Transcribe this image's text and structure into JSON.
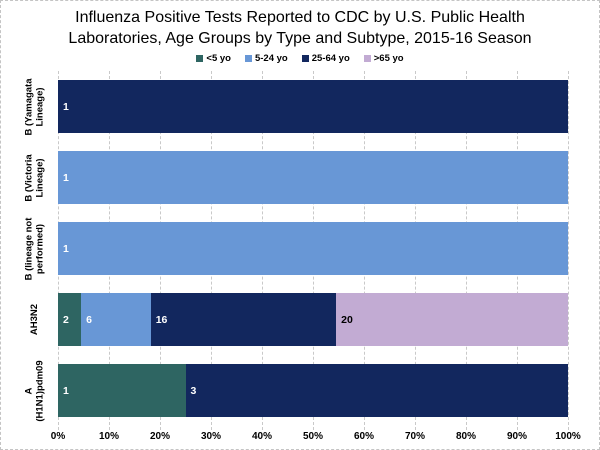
{
  "title": {
    "line1": "Influenza Positive Tests Reported to CDC by U.S. Public Health",
    "line2": "Laboratories, Age Groups by Type and Subtype, 2015-16 Season"
  },
  "colors": {
    "under5": "#2e6562",
    "age5_24": "#6897d6",
    "age25_64": "#12275e",
    "over65": "#c2abd3",
    "grid": "#c9c9c9",
    "label_light": "#ffffff",
    "label_dark": "#000000"
  },
  "legend": [
    {
      "label": "<5 yo",
      "color_key": "under5"
    },
    {
      "label": "5-24 yo",
      "color_key": "age5_24"
    },
    {
      "label": "25-64 yo",
      "color_key": "age25_64"
    },
    {
      "label": ">65 yo",
      "color_key": "over65"
    }
  ],
  "x_axis": {
    "tick_labels": [
      "0%",
      "10%",
      "20%",
      "30%",
      "40%",
      "50%",
      "60%",
      "70%",
      "80%",
      "90%",
      "100%"
    ]
  },
  "rows": [
    {
      "category_lines": [
        "B (Yamagata",
        "Lineage)"
      ],
      "segments": [
        {
          "color_key": "age25_64",
          "value": "1",
          "pct": 100,
          "text": "light"
        }
      ]
    },
    {
      "category_lines": [
        "B (Victoria",
        "Lineage)"
      ],
      "segments": [
        {
          "color_key": "age5_24",
          "value": "1",
          "pct": 100,
          "text": "light"
        }
      ]
    },
    {
      "category_lines": [
        "B (lineage not",
        "performed)"
      ],
      "segments": [
        {
          "color_key": "age5_24",
          "value": "1",
          "pct": 100,
          "text": "light"
        }
      ]
    },
    {
      "category_lines": [
        "AH3N2"
      ],
      "segments": [
        {
          "color_key": "under5",
          "value": "2",
          "pct": 4.545,
          "text": "light"
        },
        {
          "color_key": "age5_24",
          "value": "6",
          "pct": 13.636,
          "text": "light"
        },
        {
          "color_key": "age25_64",
          "value": "16",
          "pct": 36.364,
          "text": "light"
        },
        {
          "color_key": "over65",
          "value": "20",
          "pct": 45.455,
          "text": "dark"
        }
      ]
    },
    {
      "category_lines": [
        "A",
        "(H1N1)pdm09"
      ],
      "segments": [
        {
          "color_key": "under5",
          "value": "1",
          "pct": 25,
          "text": "light"
        },
        {
          "color_key": "age25_64",
          "value": "3",
          "pct": 75,
          "text": "light"
        }
      ]
    }
  ],
  "chart_data": {
    "type": "bar",
    "orientation": "horizontal",
    "stacked": true,
    "normalized_to_100pct": true,
    "title": "Influenza Positive Tests Reported to CDC by U.S. Public Health Laboratories, Age Groups by Type and Subtype, 2015-16 Season",
    "categories": [
      "B (Yamagata Lineage)",
      "B (Victoria Lineage)",
      "B (lineage not performed)",
      "AH3N2",
      "A (H1N1)pdm09"
    ],
    "series": [
      {
        "name": "<5 yo",
        "values": [
          0,
          0,
          0,
          2,
          1
        ],
        "color": "#2e6562"
      },
      {
        "name": "5-24 yo",
        "values": [
          0,
          1,
          1,
          6,
          0
        ],
        "color": "#6897d6"
      },
      {
        "name": "25-64 yo",
        "values": [
          1,
          0,
          0,
          16,
          3
        ],
        "color": "#12275e"
      },
      {
        "name": ">65 yo",
        "values": [
          0,
          0,
          0,
          20,
          0
        ],
        "color": "#c2abd3"
      }
    ],
    "data_labels_shown": true,
    "xlabel": "",
    "ylabel": "",
    "x_axis_ticks_pct": [
      0,
      10,
      20,
      30,
      40,
      50,
      60,
      70,
      80,
      90,
      100
    ],
    "xlim_pct": [
      0,
      100
    ],
    "legend_position": "top-center",
    "grid": "vertical-dashed"
  }
}
